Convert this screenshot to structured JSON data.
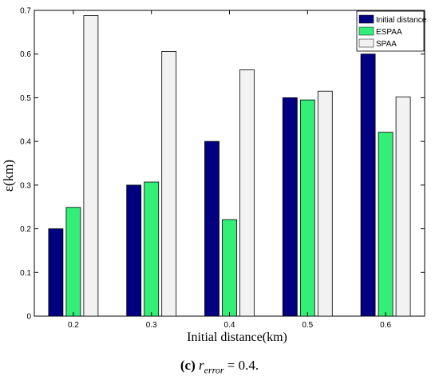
{
  "chart_data": {
    "type": "bar",
    "xlabel": "Initial distance(km)",
    "ylabel": "ε(km)",
    "categories": [
      "0.2",
      "0.3",
      "0.4",
      "0.5",
      "0.6"
    ],
    "ylim": [
      0,
      0.7
    ],
    "yticks": [
      "0",
      "0.1",
      "0.2",
      "0.3",
      "0.4",
      "0.5",
      "0.6",
      "0.7"
    ],
    "legend_position": "top-right",
    "series": [
      {
        "name": "Initial distance",
        "color": "#000080",
        "values": [
          0.2,
          0.3,
          0.4,
          0.5,
          0.6
        ]
      },
      {
        "name": "ESPAA",
        "color": "#33ee77",
        "values": [
          0.249,
          0.307,
          0.221,
          0.495,
          0.421
        ]
      },
      {
        "name": "SPAA",
        "color": "#f2f2f2",
        "values": [
          0.688,
          0.606,
          0.564,
          0.515,
          0.502
        ]
      }
    ]
  },
  "caption": {
    "label": "(c)",
    "variable": "r",
    "subscript": "error",
    "rest": " = 0.4."
  }
}
